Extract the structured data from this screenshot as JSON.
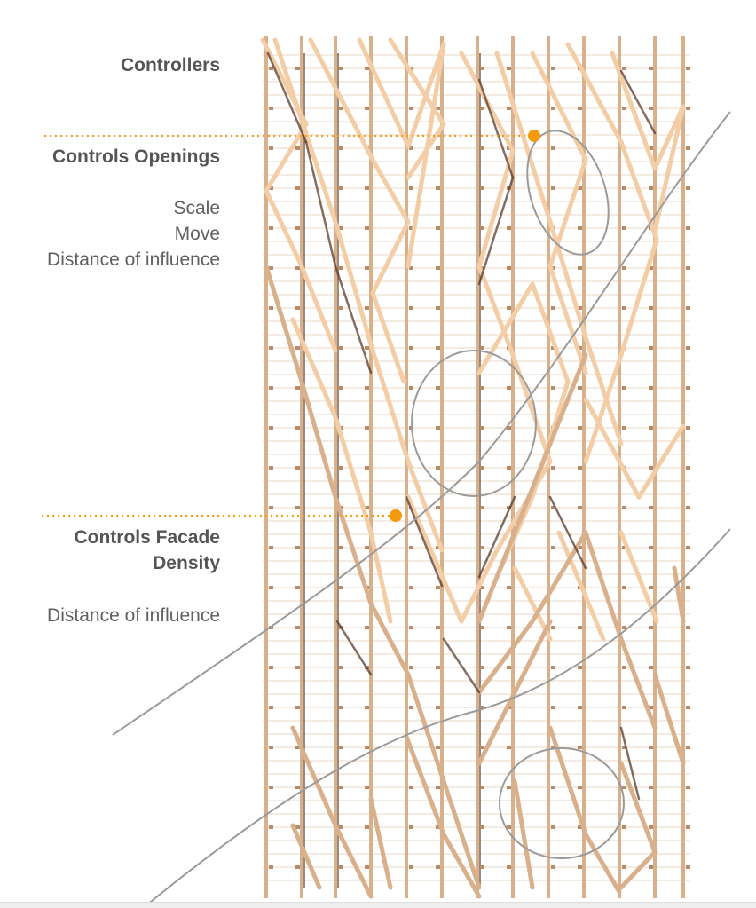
{
  "labels": {
    "controllers": "Controllers",
    "controls_openings": "Controls Openings",
    "scale": "Scale",
    "move": "Move",
    "distance_of_influence_1": "Distance of influence",
    "controls_facade_density_line1": "Controls Facade",
    "controls_facade_density_line2": "Density",
    "distance_of_influence_2": "Distance of influence"
  },
  "colors": {
    "timber_light": "#f3cda6",
    "timber_mid": "#d9b08c",
    "timber_dark": "#5a3c2e",
    "guide": "#9a9a9a",
    "controller": "#f59a0c",
    "label_text": "#5f5f5f"
  }
}
